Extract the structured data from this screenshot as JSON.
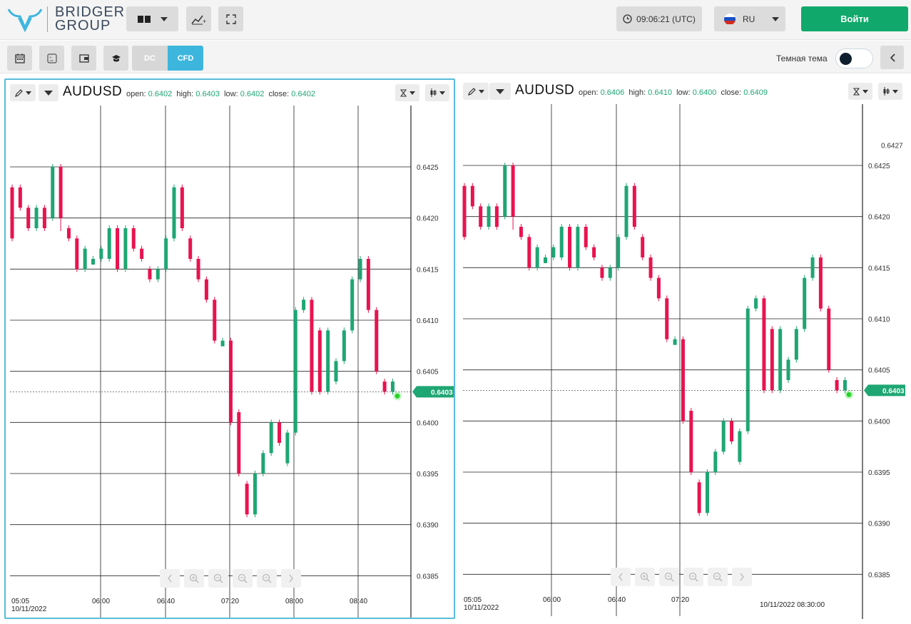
{
  "topbar": {
    "logo_line1": "BRIDGER",
    "logo_line2": "GROUP",
    "clock": "09:06:21 (UTC)",
    "language": "RU",
    "login": "Войти",
    "icons": {
      "layout": "two-panel-layout-icon",
      "add_chart": "add-indicator-icon",
      "fullscreen": "fullscreen-icon",
      "clock": "clock-icon",
      "flag": "russia-flag-icon"
    }
  },
  "subbar": {
    "seg_dc": "DC",
    "seg_cfd": "CFD",
    "theme_label": "Темная тема",
    "theme_dark": false,
    "icons": [
      "calendar-icon",
      "calculator-icon",
      "wallet-icon",
      "education-icon"
    ]
  },
  "colors": {
    "up": "#1ea673",
    "down": "#e8134f",
    "accent": "#3db6de",
    "login": "#10a96b"
  },
  "charts": [
    {
      "symbol": "AUDUSD",
      "ohlc": {
        "open_label": "open:",
        "open": "0.6402",
        "high_label": "high:",
        "high": "0.6403",
        "low_label": "low:",
        "low": "0.6402",
        "close_label": "close:",
        "close": "0.6402"
      },
      "price_ticks": [
        "0.6425",
        "0.6420",
        "0.6415",
        "0.6410",
        "0.6405",
        "0.6400",
        "0.6395",
        "0.6390",
        "0.6385"
      ],
      "top_price": "",
      "last_price": "0.6403",
      "time_ticks": [
        "05:05",
        "06:00",
        "06:40",
        "07:20",
        "08:00",
        "08:40"
      ],
      "date_label": "10/11/2022",
      "crosshair_time": ""
    },
    {
      "symbol": "AUDUSD",
      "ohlc": {
        "open_label": "open:",
        "open": "0.6406",
        "high_label": "high:",
        "high": "0.6410",
        "low_label": "low:",
        "low": "0.6400",
        "close_label": "close:",
        "close": "0.6409"
      },
      "price_ticks": [
        "0.6425",
        "0.6420",
        "0.6415",
        "0.6410",
        "0.6405",
        "0.6400",
        "0.6395",
        "0.6390",
        "0.6385"
      ],
      "top_price": "0.6427",
      "last_price": "0.6403",
      "time_ticks": [
        "05:05",
        "06:00",
        "06:40",
        "07:20"
      ],
      "date_label": "10/11/2022",
      "crosshair_time": "10/11/2022 08:30:00"
    }
  ],
  "chart_data": [
    {
      "type": "candlestick",
      "title": "AUDUSD",
      "ylim": [
        0.6383,
        0.6431
      ],
      "candles": [
        [
          0.6423,
          0.6418,
          0.6423,
          0.6418
        ],
        [
          0.6423,
          0.6421,
          0.6423,
          0.6421
        ],
        [
          0.6421,
          0.6419,
          0.6421,
          0.6419
        ],
        [
          0.6419,
          0.6421,
          0.6421,
          0.6419
        ],
        [
          0.6421,
          0.6419,
          0.6421,
          0.6419
        ],
        [
          0.642,
          0.6425,
          0.6425,
          0.642
        ],
        [
          0.6425,
          0.642,
          0.6425,
          0.6419
        ],
        [
          0.6419,
          0.6418,
          0.6419,
          0.6418
        ],
        [
          0.6418,
          0.6415,
          0.6418,
          0.6415
        ],
        [
          0.6415,
          0.6417,
          0.6417,
          0.6415
        ],
        [
          0.6416,
          0.6416,
          0.6416,
          0.6416
        ],
        [
          0.6416,
          0.6417,
          0.6417,
          0.6416
        ],
        [
          0.6416,
          0.6419,
          0.6419,
          0.6416
        ],
        [
          0.6419,
          0.6415,
          0.6419,
          0.6415
        ],
        [
          0.6415,
          0.6419,
          0.6419,
          0.6415
        ],
        [
          0.6419,
          0.6417,
          0.6419,
          0.6417
        ],
        [
          0.6417,
          0.6416,
          0.6417,
          0.6416
        ],
        [
          0.6415,
          0.6414,
          0.6415,
          0.6414
        ],
        [
          0.6414,
          0.6415,
          0.6415,
          0.6414
        ],
        [
          0.6415,
          0.6418,
          0.6418,
          0.6415
        ],
        [
          0.6418,
          0.6423,
          0.6423,
          0.6418
        ],
        [
          0.6423,
          0.6419,
          0.6423,
          0.6419
        ],
        [
          0.6418,
          0.6416,
          0.6418,
          0.6416
        ],
        [
          0.6416,
          0.6414,
          0.6416,
          0.6414
        ],
        [
          0.6414,
          0.6412,
          0.6414,
          0.6412
        ],
        [
          0.6412,
          0.6408,
          0.6412,
          0.6408
        ],
        [
          0.6408,
          0.6408,
          0.6408,
          0.6408
        ],
        [
          0.6408,
          0.64,
          0.6408,
          0.64
        ],
        [
          0.6401,
          0.6395,
          0.6401,
          0.6395
        ],
        [
          0.6394,
          0.6391,
          0.6394,
          0.6391
        ],
        [
          0.6391,
          0.6395,
          0.6395,
          0.6391
        ],
        [
          0.6395,
          0.6397,
          0.6397,
          0.6395
        ],
        [
          0.6397,
          0.64,
          0.64,
          0.6397
        ],
        [
          0.64,
          0.6398,
          0.64,
          0.6398
        ],
        [
          0.6396,
          0.6399,
          0.6399,
          0.6396
        ],
        [
          0.6399,
          0.6411,
          0.6411,
          0.6399
        ],
        [
          0.6411,
          0.6412,
          0.6412,
          0.6411
        ],
        [
          0.6412,
          0.6403,
          0.6412,
          0.6403
        ],
        [
          0.6409,
          0.6403,
          0.6409,
          0.6403
        ],
        [
          0.6403,
          0.6409,
          0.6409,
          0.6403
        ],
        [
          0.6404,
          0.6406,
          0.6406,
          0.6404
        ],
        [
          0.6406,
          0.6409,
          0.6409,
          0.6406
        ],
        [
          0.6409,
          0.6414,
          0.6414,
          0.6409
        ],
        [
          0.6414,
          0.6416,
          0.6416,
          0.6414
        ],
        [
          0.6416,
          0.6411,
          0.6416,
          0.6411
        ],
        [
          0.6411,
          0.6405,
          0.6411,
          0.6405
        ],
        [
          0.6404,
          0.6403,
          0.6404,
          0.6403
        ],
        [
          0.6403,
          0.6404,
          0.6404,
          0.6403
        ]
      ],
      "live_price": 0.6403,
      "x_ticks": [
        "05:05",
        "06:00",
        "06:40",
        "07:20",
        "08:00",
        "08:40"
      ]
    },
    {
      "type": "candlestick",
      "title": "AUDUSD",
      "ylim": [
        0.6383,
        0.6431
      ],
      "candles": "same as chart 1",
      "crosshair": {
        "time": "10/11/2022 08:30:00",
        "price": 0.641
      }
    }
  ]
}
